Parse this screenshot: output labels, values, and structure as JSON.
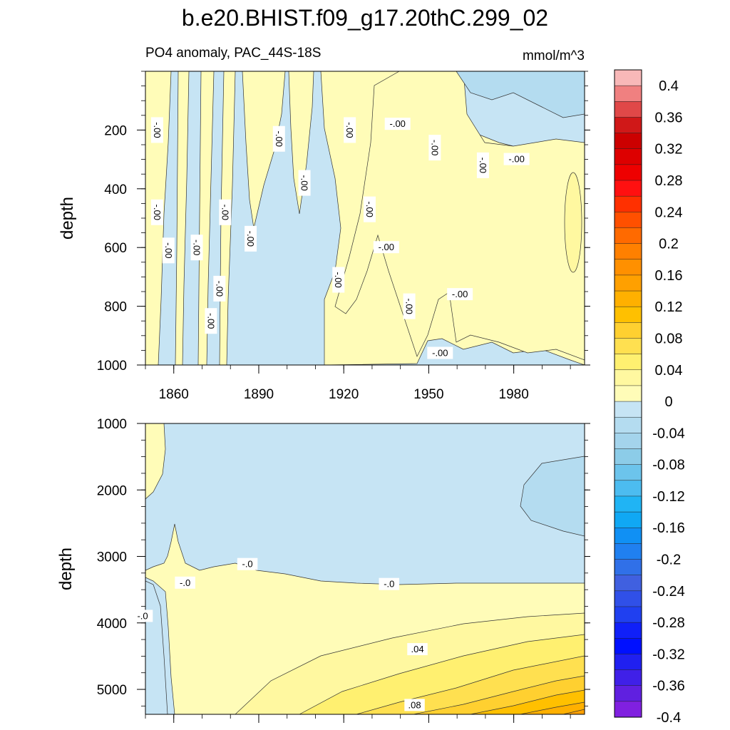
{
  "chart_data": [
    {
      "type": "contour",
      "title": "b.e20.BHIST.f09_g17.20thC.299_02",
      "subtitle_left": "PO4 anomaly, PAC_44S-18S",
      "subtitle_right": "mmol/m^3",
      "ylabel": "depth",
      "xlim": [
        1850,
        2005
      ],
      "ylim": [
        1000,
        0
      ],
      "x_ticks": [
        1860,
        1890,
        1920,
        1950,
        1980
      ],
      "x_tick_labels": [
        "1860",
        "1890",
        "1920",
        "1950",
        "1980"
      ],
      "y_ticks": [
        200,
        400,
        600,
        800,
        1000
      ],
      "y_tick_labels": [
        "200",
        "400",
        "600",
        "800",
        "1000"
      ],
      "contour_labels": [
        {
          "text": "-.00",
          "x": 1854,
          "y": 200
        },
        {
          "text": "-.00",
          "x": 1854,
          "y": 480
        },
        {
          "text": "-.00",
          "x": 1858,
          "y": 610
        },
        {
          "text": "-.00",
          "x": 1868,
          "y": 600
        },
        {
          "text": "-.00",
          "x": 1873,
          "y": 850
        },
        {
          "text": "-.00",
          "x": 1878,
          "y": 480
        },
        {
          "text": "-.00",
          "x": 1876,
          "y": 740
        },
        {
          "text": "-.00",
          "x": 1887,
          "y": 570
        },
        {
          "text": "-.00",
          "x": 1897,
          "y": 230
        },
        {
          "text": "-.00",
          "x": 1906,
          "y": 380
        },
        {
          "text": "-.00",
          "x": 1922,
          "y": 200
        },
        {
          "text": "-.00",
          "x": 1918,
          "y": 710
        },
        {
          "text": "-.00",
          "x": 1929,
          "y": 470
        },
        {
          "text": "-.00",
          "x": 1935,
          "y": 600
        },
        {
          "text": "-.00",
          "x": 1939,
          "y": 180
        },
        {
          "text": "-.00",
          "x": 1943,
          "y": 800
        },
        {
          "text": "-.00",
          "x": 1952,
          "y": 260
        },
        {
          "text": "-.00",
          "x": 1954,
          "y": 960
        },
        {
          "text": "-.00",
          "x": 1961,
          "y": 760
        },
        {
          "text": "-.00",
          "x": 1969,
          "y": 320
        },
        {
          "text": "-.00",
          "x": 1981,
          "y": 300
        }
      ]
    },
    {
      "type": "contour",
      "ylabel": "depth",
      "xlim": [
        1850,
        2005
      ],
      "ylim": [
        5375,
        1000
      ],
      "x_ticks": [
        1860,
        1890,
        1920,
        1950,
        1980
      ],
      "y_ticks": [
        1000,
        2000,
        3000,
        4000,
        5000
      ],
      "y_tick_labels": [
        "1000",
        "2000",
        "3000",
        "4000",
        "5000"
      ],
      "contour_labels": [
        {
          "text": "-.0",
          "x": 1864,
          "y": 3400
        },
        {
          "text": "-.0",
          "x": 1849,
          "y": 3900
        },
        {
          "text": "-.0",
          "x": 1886,
          "y": 3120
        },
        {
          "text": "-.0",
          "x": 1936,
          "y": 3420
        },
        {
          "text": ".04",
          "x": 1946,
          "y": 4400
        },
        {
          "text": ".08",
          "x": 1945,
          "y": 5240
        }
      ]
    }
  ],
  "colorbar": {
    "tick_labels": [
      "0.4",
      "0.36",
      "0.32",
      "0.28",
      "0.24",
      "0.2",
      "0.16",
      "0.12",
      "0.08",
      "0.04",
      "0",
      "-0.04",
      "-0.08",
      "-0.12",
      "-0.16",
      "-0.2",
      "-0.24",
      "-0.28",
      "-0.32",
      "-0.36",
      "-0.4"
    ],
    "colors_top_to_bottom": [
      "#f8b8b8",
      "#f08080",
      "#e04848",
      "#d01818",
      "#cc0000",
      "#dd0000",
      "#ee0000",
      "#ff1010",
      "#ff3000",
      "#ff5000",
      "#ff6a00",
      "#ff8000",
      "#ff9000",
      "#ffa000",
      "#ffb000",
      "#ffc000",
      "#ffd030",
      "#ffe050",
      "#fff070",
      "#fff8a0",
      "#fffcb8",
      "#c6e4f4",
      "#b4dcf0",
      "#a4d4ec",
      "#8ccce8",
      "#6cc4ec",
      "#4cbcf0",
      "#20b4f4",
      "#10a8f4",
      "#1090f4",
      "#2080f0",
      "#3070e8",
      "#4060e0",
      "#3050e8",
      "#2040f0",
      "#1020f8",
      "#0010ff",
      "#2020f0",
      "#4020e8",
      "#6020e0",
      "#8020e0"
    ]
  }
}
